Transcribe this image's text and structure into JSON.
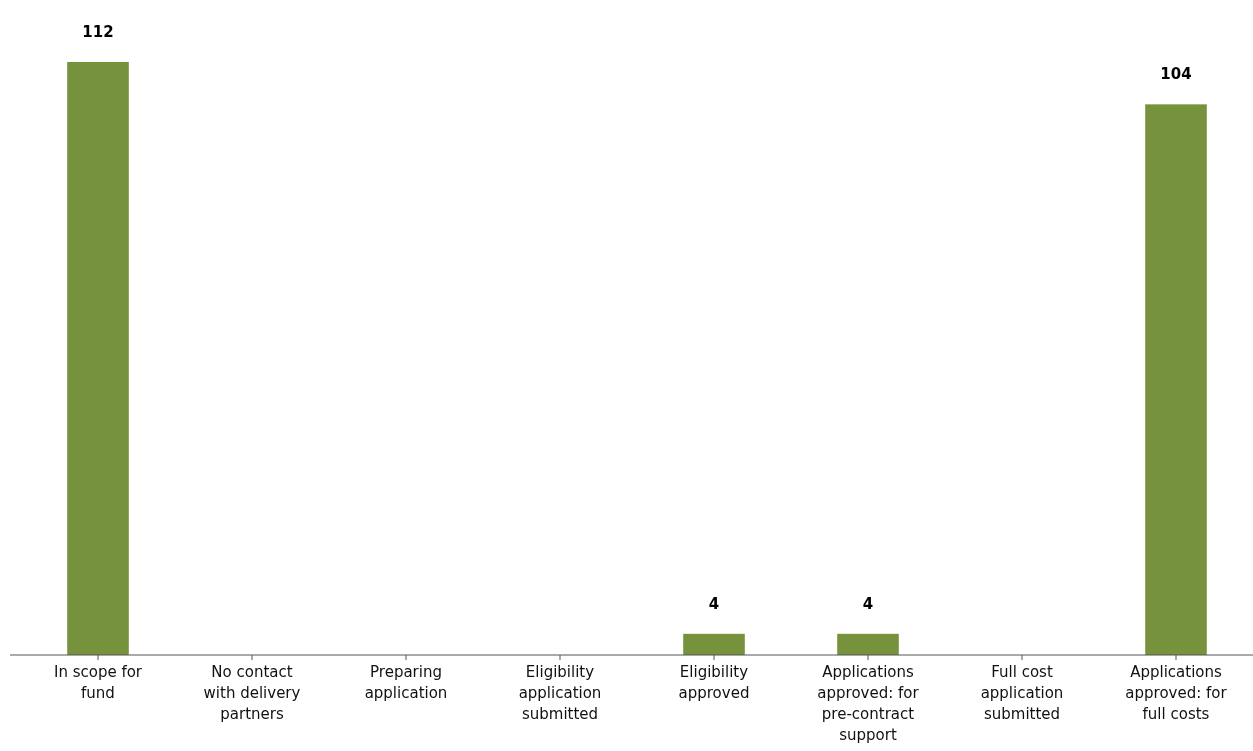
{
  "chart_data": {
    "type": "bar",
    "categories": [
      "In scope for fund",
      "No contact with delivery partners",
      "Preparing application",
      "Eligibility application submitted",
      "Eligibility approved",
      "Applications approved: for pre-contract support",
      "Full cost application submitted",
      "Applications approved: for full costs"
    ],
    "values": [
      112,
      0,
      0,
      0,
      4,
      4,
      0,
      104
    ],
    "value_labels": [
      "112",
      null,
      null,
      null,
      "4",
      "4",
      null,
      "104"
    ],
    "color": "#76923c"
  }
}
